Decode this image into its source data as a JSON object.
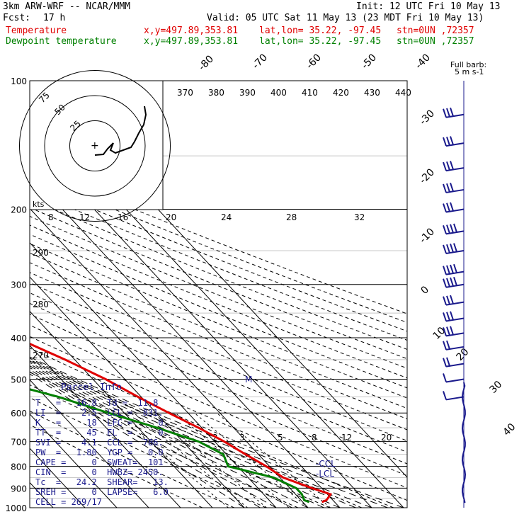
{
  "header": {
    "model": "3km ARW-WRF -- NCAR/MMM",
    "init": "Init: 12 UTC Fri 10 May 13",
    "fcst_label": "Fcst:",
    "fcst_value": "17 h",
    "valid": "Valid: 05 UTC Sat 11 May 13 (23 MDT Fri 10 May 13)",
    "temp_label": "Temperature",
    "dew_label": "Dewpoint temperature",
    "xy": "x,y=497.89,353.81",
    "latlon": "lat,lon= 35.22, -97.45",
    "stn": "stn=0UN ,72357"
  },
  "colors": {
    "temperature": "#e00000",
    "dewpoint": "#008000",
    "wind": "#1a1a8c",
    "grid": "#000000"
  },
  "chart_data": {
    "type": "line",
    "pressure_ticks": [
      "100",
      "200",
      "300",
      "400",
      "500",
      "600",
      "700",
      "800",
      "900",
      "1000"
    ],
    "pressure_values": [
      100,
      200,
      300,
      400,
      500,
      600,
      700,
      800,
      900,
      1000
    ],
    "isotherm_labels": [
      "-80",
      "-70",
      "-60",
      "-50",
      "-40",
      "-30",
      "-20",
      "-10",
      "0",
      "10",
      "20",
      "30",
      "40"
    ],
    "theta_labels": [
      "370",
      "380",
      "390",
      "400",
      "410",
      "420",
      "430",
      "440"
    ],
    "dry_adiabat_labels": [
      "290",
      "280",
      "270"
    ],
    "mixing_ratio_labels": [
      "2",
      "3",
      "5",
      "8",
      "12",
      "20"
    ],
    "hodo_speed_labels": [
      "8",
      "12",
      "16",
      "20",
      "24",
      "28",
      "32"
    ],
    "hodo_ring_labels": [
      "75",
      "50",
      "25"
    ],
    "hodo_units": "kts",
    "barb_key": "Full barb:",
    "barb_key_value": "5 m s-1",
    "marker_labels": {
      "m": "M",
      "ccl": "-CCL",
      "lcl": "-LCL"
    },
    "temperature": [
      {
        "p": 100,
        "t": -58
      },
      {
        "p": 130,
        "t": -57
      },
      {
        "p": 150,
        "t": -57
      },
      {
        "p": 175,
        "t": -59
      },
      {
        "p": 200,
        "t": -60
      },
      {
        "p": 230,
        "t": -61
      },
      {
        "p": 250,
        "t": -60
      },
      {
        "p": 300,
        "t": -49
      },
      {
        "p": 350,
        "t": -40
      },
      {
        "p": 400,
        "t": -32
      },
      {
        "p": 450,
        "t": -23
      },
      {
        "p": 500,
        "t": -16
      },
      {
        "p": 550,
        "t": -11
      },
      {
        "p": 600,
        "t": -6
      },
      {
        "p": 650,
        "t": -1
      },
      {
        "p": 700,
        "t": 3
      },
      {
        "p": 750,
        "t": 6
      },
      {
        "p": 800,
        "t": 9
      },
      {
        "p": 850,
        "t": 11
      },
      {
        "p": 900,
        "t": 17
      },
      {
        "p": 930,
        "t": 21
      },
      {
        "p": 960,
        "t": 18
      },
      {
        "p": 970,
        "t": 16
      }
    ],
    "dewpoint": [
      {
        "p": 100,
        "t": -86
      },
      {
        "p": 130,
        "t": -86
      },
      {
        "p": 150,
        "t": -87
      },
      {
        "p": 175,
        "t": -88
      },
      {
        "p": 200,
        "t": -86
      },
      {
        "p": 225,
        "t": -87
      },
      {
        "p": 250,
        "t": -79
      },
      {
        "p": 300,
        "t": -63
      },
      {
        "p": 350,
        "t": -53
      },
      {
        "p": 400,
        "t": -59
      },
      {
        "p": 450,
        "t": -70
      },
      {
        "p": 500,
        "t": -52
      },
      {
        "p": 550,
        "t": -36
      },
      {
        "p": 600,
        "t": -25
      },
      {
        "p": 650,
        "t": -14
      },
      {
        "p": 700,
        "t": -5
      },
      {
        "p": 750,
        "t": -1
      },
      {
        "p": 800,
        "t": -3
      },
      {
        "p": 850,
        "t": 8
      },
      {
        "p": 900,
        "t": 12
      },
      {
        "p": 930,
        "t": 12
      },
      {
        "p": 960,
        "t": 11
      },
      {
        "p": 970,
        "t": 12
      }
    ],
    "hodograph": [
      {
        "u": 14,
        "v": 9
      },
      {
        "u": 11,
        "v": 10
      },
      {
        "u": 3,
        "v": 5
      },
      {
        "u": -5,
        "v": 3
      },
      {
        "u": -7,
        "v": 5
      },
      {
        "u": -9,
        "v": 7
      },
      {
        "u": -16,
        "v": 15
      },
      {
        "u": -20,
        "v": 21
      },
      {
        "u": -23,
        "v": 32
      }
    ],
    "wind_profile": [
      {
        "p": 120,
        "spd": 35
      },
      {
        "p": 140,
        "spd": 35
      },
      {
        "p": 160,
        "spd": 35
      },
      {
        "p": 180,
        "spd": 35
      },
      {
        "p": 200,
        "spd": 35
      },
      {
        "p": 225,
        "spd": 40
      },
      {
        "p": 250,
        "spd": 40
      },
      {
        "p": 280,
        "spd": 40
      },
      {
        "p": 300,
        "spd": 40
      },
      {
        "p": 330,
        "spd": 35
      },
      {
        "p": 360,
        "spd": 35
      },
      {
        "p": 390,
        "spd": 30
      },
      {
        "p": 420,
        "spd": 25
      },
      {
        "p": 460,
        "spd": 20
      },
      {
        "p": 500,
        "spd": 15
      },
      {
        "p": 550,
        "spd": 10
      }
    ]
  },
  "parcel": {
    "title": "Parcel Info",
    "lines": [
      "T   =   16.8  Td =  11.8",
      "LI  =    2.5  LCL =  831.",
      "K   =     18  LFC =     0.",
      "TT  =     45  EL  =     0.",
      "SVI =    4.1  CCL =  786.",
      "PW  =   1.80  YGP =   0.0",
      "CAPE =     0  SWEAT=  101",
      "CIN  =     0  HWBZ= 2450.",
      "Tc  =   24.2  SHEAR=   13.",
      "SREH =     0  LAPSE=   6.0",
      "CELL = 269/17"
    ]
  }
}
